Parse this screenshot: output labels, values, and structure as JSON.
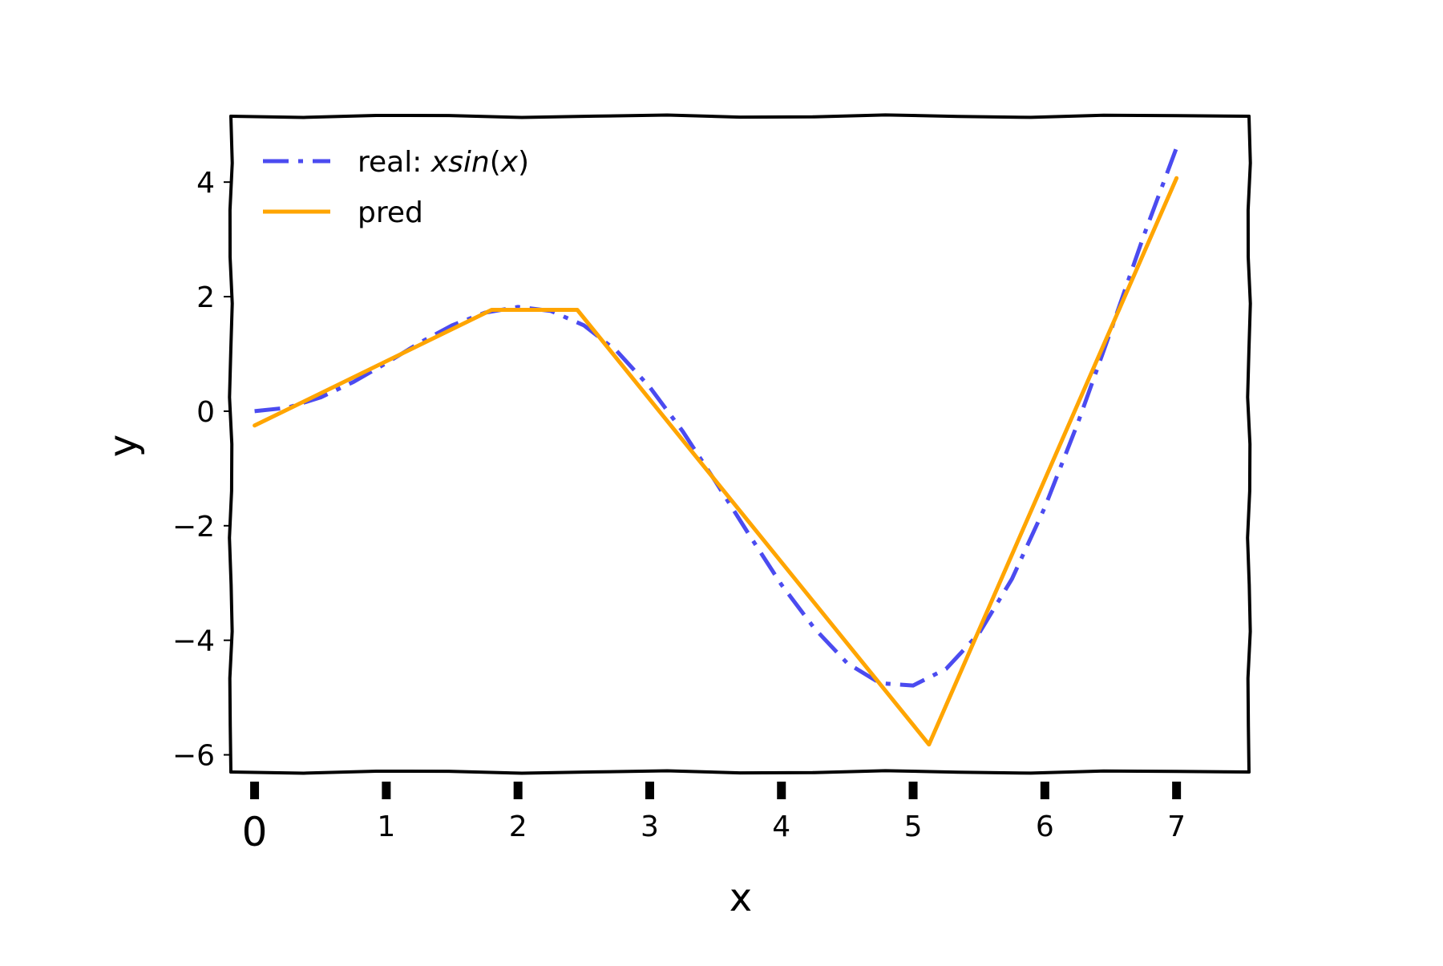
{
  "chart_data": {
    "type": "line",
    "title": "",
    "xlabel": "x",
    "ylabel": "y",
    "xlim": [
      -0.18,
      7.55
    ],
    "ylim": [
      -6.3,
      5.15
    ],
    "x_ticks": [
      0,
      1,
      2,
      3,
      4,
      5,
      6,
      7
    ],
    "x_tick_labels": [
      "0",
      "1",
      "2",
      "3",
      "4",
      "5",
      "6",
      "7"
    ],
    "y_ticks": [
      4,
      2,
      0,
      -2,
      -4,
      -6
    ],
    "y_tick_labels": [
      "4",
      "2",
      "0",
      "−2",
      "−4",
      "−6"
    ],
    "grid": false,
    "legend_position": "top-left",
    "series": [
      {
        "name": "real: xsin(x)",
        "legend_plain": "real: ",
        "legend_italic": "xsin",
        "legend_tail_open": "(",
        "legend_tail_var": "x",
        "legend_tail_close": ")",
        "style": "dashdot",
        "color": "#4b4bf0",
        "x": [
          0,
          0.25,
          0.5,
          0.75,
          1.0,
          1.25,
          1.5,
          1.75,
          2.0,
          2.25,
          2.5,
          2.75,
          3.0,
          3.25,
          3.5,
          3.75,
          4.0,
          4.25,
          4.5,
          4.75,
          5.0,
          5.25,
          5.5,
          5.75,
          6.0,
          6.25,
          6.5,
          6.75,
          7.0
        ],
        "y": [
          0,
          0.06,
          0.24,
          0.51,
          0.84,
          1.19,
          1.5,
          1.72,
          1.82,
          1.75,
          1.5,
          1.05,
          0.42,
          -0.35,
          -1.23,
          -2.14,
          -3.03,
          -3.79,
          -4.4,
          -4.75,
          -4.79,
          -4.5,
          -3.88,
          -2.93,
          -1.68,
          -0.21,
          1.4,
          3.06,
          4.6
        ]
      },
      {
        "name": "pred",
        "style": "solid",
        "color": "#ffa500",
        "x": [
          0,
          1.8,
          2.45,
          5.12,
          7.0
        ],
        "y": [
          -0.25,
          1.77,
          1.77,
          -5.82,
          4.07
        ]
      }
    ]
  }
}
